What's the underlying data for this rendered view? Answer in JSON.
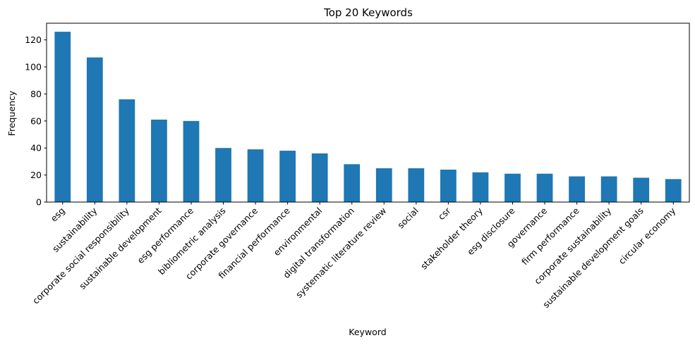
{
  "chart_data": {
    "type": "bar",
    "title": "Top 20 Keywords",
    "xlabel": "Keyword",
    "ylabel": "Frequency",
    "ylim": [
      0,
      132.3
    ],
    "yticks": [
      0,
      20,
      40,
      60,
      80,
      100,
      120
    ],
    "bar_color": "#1f77b4",
    "grid": false,
    "legend": "none",
    "categories": [
      "esg",
      "sustainability",
      "corporate social responsibility",
      "sustainable development",
      "esg performance",
      "bibliometric analysis",
      "corporate governance",
      "financial performance",
      "environmental",
      "digital transformation",
      "systematic literature review",
      "social",
      "csr",
      "stakeholder theory",
      "esg disclosure",
      "governance",
      "firm performance",
      "corporate sustainability",
      "sustainable development goals",
      "circular economy"
    ],
    "values": [
      126,
      107,
      76,
      61,
      60,
      40,
      39,
      38,
      36,
      28,
      25,
      25,
      24,
      22,
      21,
      21,
      19,
      19,
      18,
      17
    ]
  }
}
